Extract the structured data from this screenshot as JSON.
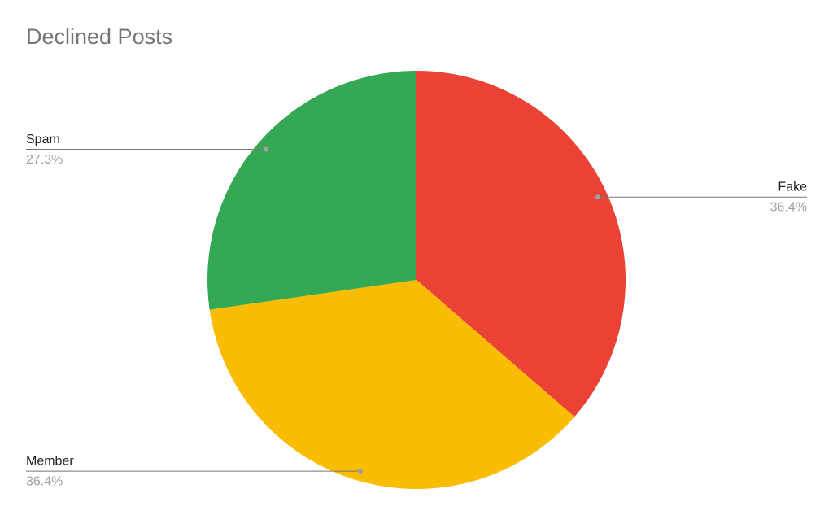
{
  "chart_data": {
    "type": "pie",
    "title": "Declined Posts",
    "categories": [
      "Fake",
      "Member",
      "Spam"
    ],
    "values": [
      36.4,
      36.4,
      27.3
    ],
    "value_labels": [
      "36.4%",
      "36.4%",
      "27.3%"
    ],
    "colors": [
      "#ea4335",
      "#fbbc04",
      "#34a853"
    ]
  }
}
